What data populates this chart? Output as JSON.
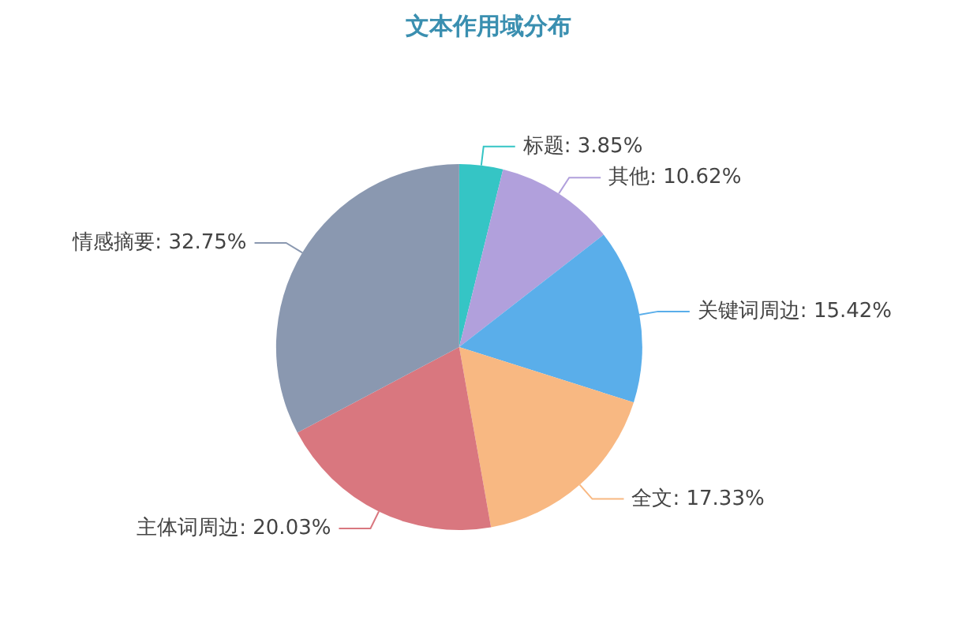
{
  "chart_data": {
    "type": "pie",
    "title": "文本作用域分布",
    "categories": [
      "标题",
      "其他",
      "关键词周边",
      "全文",
      "主体词周边",
      "情感摘要"
    ],
    "values": [
      3.85,
      10.62,
      15.42,
      17.33,
      20.03,
      32.75
    ],
    "value_labels": [
      "3.85%",
      "10.62%",
      "15.42%",
      "17.33%",
      "20.03%",
      "32.75%"
    ],
    "colors": [
      "#35c5c5",
      "#b1a0dc",
      "#5aaeea",
      "#f8b882",
      "#d9777f",
      "#8a98b0"
    ],
    "legend": false
  }
}
